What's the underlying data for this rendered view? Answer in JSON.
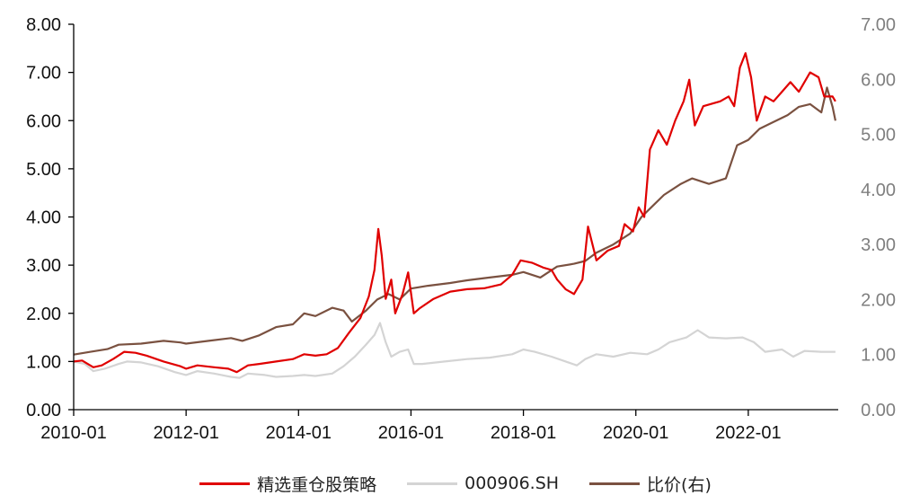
{
  "chart_data": {
    "type": "line",
    "x_tick_labels": [
      "2010-01",
      "2012-01",
      "2014-01",
      "2016-01",
      "2018-01",
      "2020-01",
      "2022-01"
    ],
    "y_left_tick_labels": [
      "0.00",
      "1.00",
      "2.00",
      "3.00",
      "4.00",
      "5.00",
      "6.00",
      "7.00",
      "8.00"
    ],
    "y_right_tick_labels": [
      "0.00",
      "1.00",
      "2.00",
      "3.00",
      "4.00",
      "5.00",
      "6.00",
      "7.00"
    ],
    "ylim_left": [
      0,
      8
    ],
    "ylim_right": [
      0,
      7
    ],
    "xlim": [
      2010.0,
      2023.6
    ],
    "grid": false,
    "legend_position": "bottom",
    "series": [
      {
        "name": "精选重仓股策略",
        "axis": "left",
        "color": "#e00000",
        "points": [
          [
            2010.0,
            1.0
          ],
          [
            2010.15,
            1.02
          ],
          [
            2010.35,
            0.88
          ],
          [
            2010.5,
            0.92
          ],
          [
            2010.7,
            1.05
          ],
          [
            2010.9,
            1.2
          ],
          [
            2011.1,
            1.18
          ],
          [
            2011.3,
            1.12
          ],
          [
            2011.6,
            1.0
          ],
          [
            2011.9,
            0.9
          ],
          [
            2012.0,
            0.85
          ],
          [
            2012.2,
            0.92
          ],
          [
            2012.5,
            0.88
          ],
          [
            2012.75,
            0.85
          ],
          [
            2012.9,
            0.78
          ],
          [
            2013.1,
            0.92
          ],
          [
            2013.3,
            0.95
          ],
          [
            2013.6,
            1.0
          ],
          [
            2013.9,
            1.05
          ],
          [
            2014.1,
            1.15
          ],
          [
            2014.3,
            1.12
          ],
          [
            2014.5,
            1.15
          ],
          [
            2014.7,
            1.28
          ],
          [
            2014.9,
            1.6
          ],
          [
            2015.1,
            1.9
          ],
          [
            2015.25,
            2.35
          ],
          [
            2015.35,
            2.9
          ],
          [
            2015.42,
            3.75
          ],
          [
            2015.48,
            3.2
          ],
          [
            2015.55,
            2.3
          ],
          [
            2015.65,
            2.7
          ],
          [
            2015.72,
            2.0
          ],
          [
            2015.85,
            2.4
          ],
          [
            2015.95,
            2.85
          ],
          [
            2016.05,
            2.0
          ],
          [
            2016.15,
            2.1
          ],
          [
            2016.4,
            2.3
          ],
          [
            2016.7,
            2.45
          ],
          [
            2017.0,
            2.5
          ],
          [
            2017.3,
            2.52
          ],
          [
            2017.6,
            2.6
          ],
          [
            2017.8,
            2.8
          ],
          [
            2017.95,
            3.1
          ],
          [
            2018.15,
            3.05
          ],
          [
            2018.35,
            2.95
          ],
          [
            2018.5,
            2.9
          ],
          [
            2018.6,
            2.7
          ],
          [
            2018.75,
            2.5
          ],
          [
            2018.9,
            2.4
          ],
          [
            2019.05,
            2.7
          ],
          [
            2019.15,
            3.8
          ],
          [
            2019.3,
            3.1
          ],
          [
            2019.5,
            3.3
          ],
          [
            2019.7,
            3.4
          ],
          [
            2019.8,
            3.85
          ],
          [
            2019.95,
            3.7
          ],
          [
            2020.05,
            4.2
          ],
          [
            2020.15,
            4.0
          ],
          [
            2020.25,
            5.4
          ],
          [
            2020.4,
            5.8
          ],
          [
            2020.55,
            5.5
          ],
          [
            2020.7,
            6.0
          ],
          [
            2020.85,
            6.4
          ],
          [
            2020.95,
            6.85
          ],
          [
            2021.05,
            5.9
          ],
          [
            2021.2,
            6.3
          ],
          [
            2021.5,
            6.4
          ],
          [
            2021.65,
            6.5
          ],
          [
            2021.75,
            6.3
          ],
          [
            2021.85,
            7.1
          ],
          [
            2021.95,
            7.4
          ],
          [
            2022.05,
            6.9
          ],
          [
            2022.15,
            6.0
          ],
          [
            2022.3,
            6.5
          ],
          [
            2022.45,
            6.4
          ],
          [
            2022.6,
            6.6
          ],
          [
            2022.75,
            6.8
          ],
          [
            2022.9,
            6.6
          ],
          [
            2023.1,
            7.0
          ],
          [
            2023.25,
            6.9
          ],
          [
            2023.35,
            6.5
          ],
          [
            2023.5,
            6.5
          ],
          [
            2023.55,
            6.4
          ]
        ]
      },
      {
        "name": "000906.SH",
        "axis": "left",
        "color": "#d4d4d4",
        "points": [
          [
            2010.0,
            1.0
          ],
          [
            2010.2,
            0.95
          ],
          [
            2010.35,
            0.8
          ],
          [
            2010.55,
            0.85
          ],
          [
            2010.8,
            0.95
          ],
          [
            2010.95,
            1.0
          ],
          [
            2011.2,
            0.98
          ],
          [
            2011.5,
            0.9
          ],
          [
            2011.8,
            0.78
          ],
          [
            2012.0,
            0.72
          ],
          [
            2012.2,
            0.8
          ],
          [
            2012.5,
            0.75
          ],
          [
            2012.8,
            0.68
          ],
          [
            2012.95,
            0.66
          ],
          [
            2013.1,
            0.75
          ],
          [
            2013.4,
            0.72
          ],
          [
            2013.6,
            0.68
          ],
          [
            2013.9,
            0.7
          ],
          [
            2014.1,
            0.72
          ],
          [
            2014.3,
            0.7
          ],
          [
            2014.6,
            0.75
          ],
          [
            2014.8,
            0.9
          ],
          [
            2015.0,
            1.1
          ],
          [
            2015.2,
            1.35
          ],
          [
            2015.35,
            1.55
          ],
          [
            2015.45,
            1.8
          ],
          [
            2015.55,
            1.4
          ],
          [
            2015.65,
            1.1
          ],
          [
            2015.8,
            1.2
          ],
          [
            2015.95,
            1.25
          ],
          [
            2016.05,
            0.95
          ],
          [
            2016.2,
            0.95
          ],
          [
            2016.6,
            1.0
          ],
          [
            2017.0,
            1.05
          ],
          [
            2017.4,
            1.08
          ],
          [
            2017.8,
            1.15
          ],
          [
            2018.0,
            1.25
          ],
          [
            2018.2,
            1.2
          ],
          [
            2018.5,
            1.1
          ],
          [
            2018.8,
            0.98
          ],
          [
            2018.95,
            0.92
          ],
          [
            2019.1,
            1.05
          ],
          [
            2019.3,
            1.15
          ],
          [
            2019.6,
            1.1
          ],
          [
            2019.9,
            1.18
          ],
          [
            2020.2,
            1.15
          ],
          [
            2020.4,
            1.25
          ],
          [
            2020.6,
            1.4
          ],
          [
            2020.9,
            1.5
          ],
          [
            2021.1,
            1.65
          ],
          [
            2021.3,
            1.5
          ],
          [
            2021.6,
            1.48
          ],
          [
            2021.9,
            1.5
          ],
          [
            2022.1,
            1.4
          ],
          [
            2022.3,
            1.2
          ],
          [
            2022.6,
            1.25
          ],
          [
            2022.8,
            1.1
          ],
          [
            2023.0,
            1.22
          ],
          [
            2023.3,
            1.2
          ],
          [
            2023.55,
            1.2
          ]
        ]
      },
      {
        "name": "比价(右)",
        "axis": "right",
        "color": "#7a5140",
        "points": [
          [
            2010.0,
            1.0
          ],
          [
            2010.3,
            1.05
          ],
          [
            2010.6,
            1.1
          ],
          [
            2010.8,
            1.18
          ],
          [
            2011.2,
            1.2
          ],
          [
            2011.6,
            1.25
          ],
          [
            2011.9,
            1.22
          ],
          [
            2012.0,
            1.2
          ],
          [
            2012.4,
            1.25
          ],
          [
            2012.8,
            1.3
          ],
          [
            2013.0,
            1.25
          ],
          [
            2013.3,
            1.35
          ],
          [
            2013.6,
            1.5
          ],
          [
            2013.9,
            1.55
          ],
          [
            2014.1,
            1.75
          ],
          [
            2014.3,
            1.7
          ],
          [
            2014.6,
            1.85
          ],
          [
            2014.8,
            1.8
          ],
          [
            2014.95,
            1.6
          ],
          [
            2015.2,
            1.8
          ],
          [
            2015.4,
            2.0
          ],
          [
            2015.6,
            2.1
          ],
          [
            2015.8,
            2.0
          ],
          [
            2016.0,
            2.2
          ],
          [
            2016.3,
            2.25
          ],
          [
            2016.7,
            2.3
          ],
          [
            2017.0,
            2.35
          ],
          [
            2017.4,
            2.4
          ],
          [
            2017.8,
            2.45
          ],
          [
            2018.0,
            2.5
          ],
          [
            2018.3,
            2.4
          ],
          [
            2018.6,
            2.6
          ],
          [
            2018.9,
            2.65
          ],
          [
            2019.1,
            2.7
          ],
          [
            2019.3,
            2.85
          ],
          [
            2019.6,
            3.0
          ],
          [
            2019.9,
            3.2
          ],
          [
            2020.1,
            3.5
          ],
          [
            2020.3,
            3.7
          ],
          [
            2020.5,
            3.9
          ],
          [
            2020.8,
            4.1
          ],
          [
            2021.0,
            4.2
          ],
          [
            2021.3,
            4.1
          ],
          [
            2021.6,
            4.2
          ],
          [
            2021.8,
            4.8
          ],
          [
            2022.0,
            4.9
          ],
          [
            2022.2,
            5.1
          ],
          [
            2022.4,
            5.2
          ],
          [
            2022.7,
            5.35
          ],
          [
            2022.9,
            5.5
          ],
          [
            2023.1,
            5.55
          ],
          [
            2023.3,
            5.4
          ],
          [
            2023.4,
            5.85
          ],
          [
            2023.5,
            5.5
          ],
          [
            2023.55,
            5.25
          ]
        ]
      }
    ]
  }
}
